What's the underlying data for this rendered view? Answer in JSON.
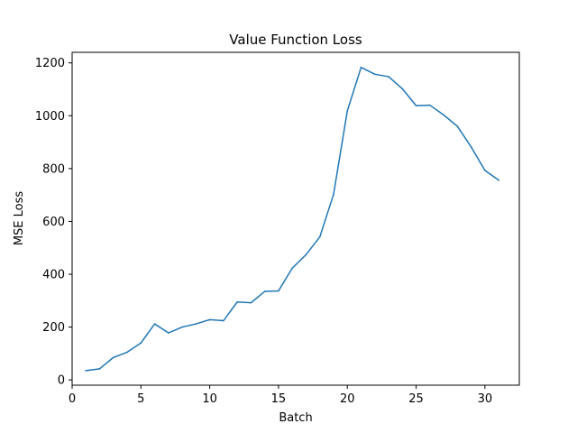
{
  "chart_data": {
    "type": "line",
    "title": "Value Function Loss",
    "xlabel": "Batch",
    "ylabel": "MSE Loss",
    "xlim": [
      0,
      32.5
    ],
    "ylim": [
      -20,
      1240
    ],
    "xticks": [
      0,
      5,
      10,
      15,
      20,
      25,
      30
    ],
    "yticks": [
      0,
      200,
      400,
      600,
      800,
      1000,
      1200
    ],
    "grid": false,
    "series": [
      {
        "color": "#1f77b4",
        "x": [
          1,
          2,
          3,
          4,
          5,
          6,
          7,
          8,
          9,
          10,
          11,
          12,
          13,
          14,
          15,
          16,
          17,
          18,
          19,
          20,
          21,
          22,
          23,
          24,
          25,
          26,
          27,
          28,
          29,
          30,
          31
        ],
        "y": [
          35,
          42,
          85,
          105,
          140,
          212,
          178,
          200,
          212,
          228,
          224,
          295,
          292,
          335,
          337,
          423,
          474,
          541,
          702,
          1018,
          1183,
          1157,
          1148,
          1102,
          1038,
          1040,
          1003,
          960,
          882,
          793,
          756
        ]
      }
    ]
  }
}
